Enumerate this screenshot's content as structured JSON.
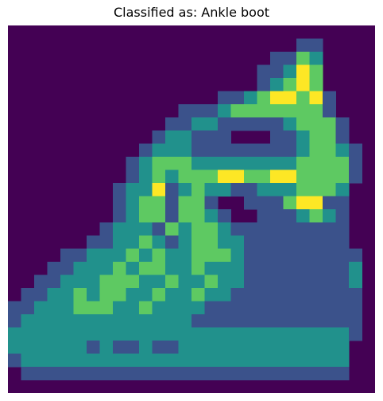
{
  "title": "Classified as: Ankle boot",
  "image": {
    "description": "28x28 grayscale fashion item rendered with a purple-to-yellow colormap",
    "colormap": [
      "#440154",
      "#3b528b",
      "#21918c",
      "#5ec962",
      "#fde725"
    ],
    "levels": [
      "0000000000000000000000000000",
      "0000000000000000000000110000",
      "0000000000000000000011320000",
      "0000000000000000000112430000",
      "0000000000000000000123430000",
      "0000000000000000112344341000",
      "0000000000000111233333331000",
      "0000000000001122111112333100",
      "0000000000012211100011233100",
      "0000000000122211111111233210",
      "0000000001233322222222333310",
      "0000000001232333443344333310",
      "0000000012241232211222333200",
      "0000000012331331001113441100",
      "0000000012331332100111232100",
      "0000000122213233211111111100",
      "0000001122321233221111111100",
      "0000112223232233321111111110",
      "0001122232332232221111111120",
      "0011222333223223221111111120",
      "0112232332232232211111111110",
      "1122233322322221111111111110",
      "1222222222222211111111111110",
      "2222222222222222222222222210",
      "2222221211211222222222222200",
      "1222222222222222222222222200",
      "0111111111111111111111111100",
      "0000000000000000000000000000"
    ]
  }
}
